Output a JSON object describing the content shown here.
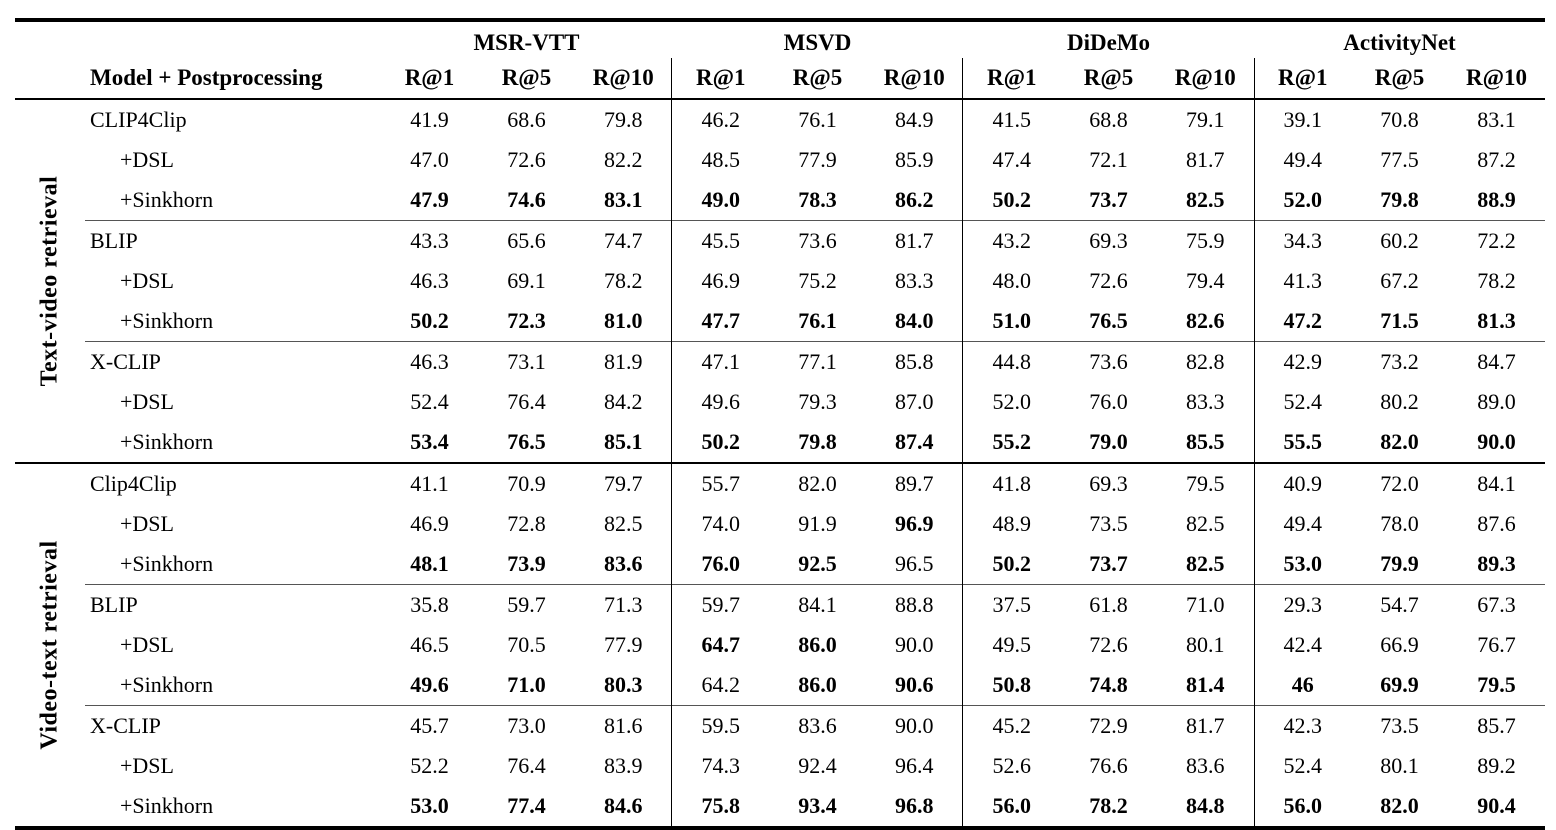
{
  "chart_data": {
    "type": "table",
    "row_header": "Model + Postprocessing",
    "col_groups": [
      {
        "label": "MSR-VTT"
      },
      {
        "label": "MSVD"
      },
      {
        "label": "DiDeMo"
      },
      {
        "label": "ActivityNet"
      }
    ],
    "metric_labels": [
      "R@1",
      "R@5",
      "R@10"
    ],
    "sections": [
      {
        "label": "Text-video retrieval",
        "groups": [
          {
            "rows": [
              {
                "model": "CLIP4Clip",
                "indent": false,
                "values": [
                  "41.9",
                  "68.6",
                  "79.8",
                  "46.2",
                  "76.1",
                  "84.9",
                  "41.5",
                  "68.8",
                  "79.1",
                  "39.1",
                  "70.8",
                  "83.1"
                ],
                "bold": []
              },
              {
                "model": "+DSL",
                "indent": true,
                "values": [
                  "47.0",
                  "72.6",
                  "82.2",
                  "48.5",
                  "77.9",
                  "85.9",
                  "47.4",
                  "72.1",
                  "81.7",
                  "49.4",
                  "77.5",
                  "87.2"
                ],
                "bold": []
              },
              {
                "model": "+Sinkhorn",
                "indent": true,
                "values": [
                  "47.9",
                  "74.6",
                  "83.1",
                  "49.0",
                  "78.3",
                  "86.2",
                  "50.2",
                  "73.7",
                  "82.5",
                  "52.0",
                  "79.8",
                  "88.9"
                ],
                "bold": [
                  0,
                  1,
                  2,
                  3,
                  4,
                  5,
                  6,
                  7,
                  8,
                  9,
                  10,
                  11
                ]
              }
            ]
          },
          {
            "rows": [
              {
                "model": "BLIP",
                "indent": false,
                "values": [
                  "43.3",
                  "65.6",
                  "74.7",
                  "45.5",
                  "73.6",
                  "81.7",
                  "43.2",
                  "69.3",
                  "75.9",
                  "34.3",
                  "60.2",
                  "72.2"
                ],
                "bold": []
              },
              {
                "model": "+DSL",
                "indent": true,
                "values": [
                  "46.3",
                  "69.1",
                  "78.2",
                  "46.9",
                  "75.2",
                  "83.3",
                  "48.0",
                  "72.6",
                  "79.4",
                  "41.3",
                  "67.2",
                  "78.2"
                ],
                "bold": []
              },
              {
                "model": "+Sinkhorn",
                "indent": true,
                "values": [
                  "50.2",
                  "72.3",
                  "81.0",
                  "47.7",
                  "76.1",
                  "84.0",
                  "51.0",
                  "76.5",
                  "82.6",
                  "47.2",
                  "71.5",
                  "81.3"
                ],
                "bold": [
                  0,
                  1,
                  2,
                  3,
                  4,
                  5,
                  6,
                  7,
                  8,
                  9,
                  10,
                  11
                ]
              }
            ]
          },
          {
            "rows": [
              {
                "model": "X-CLIP",
                "indent": false,
                "values": [
                  "46.3",
                  "73.1",
                  "81.9",
                  "47.1",
                  "77.1",
                  "85.8",
                  "44.8",
                  "73.6",
                  "82.8",
                  "42.9",
                  "73.2",
                  "84.7"
                ],
                "bold": []
              },
              {
                "model": "+DSL",
                "indent": true,
                "values": [
                  "52.4",
                  "76.4",
                  "84.2",
                  "49.6",
                  "79.3",
                  "87.0",
                  "52.0",
                  "76.0",
                  "83.3",
                  "52.4",
                  "80.2",
                  "89.0"
                ],
                "bold": []
              },
              {
                "model": "+Sinkhorn",
                "indent": true,
                "values": [
                  "53.4",
                  "76.5",
                  "85.1",
                  "50.2",
                  "79.8",
                  "87.4",
                  "55.2",
                  "79.0",
                  "85.5",
                  "55.5",
                  "82.0",
                  "90.0"
                ],
                "bold": [
                  0,
                  1,
                  2,
                  3,
                  4,
                  5,
                  6,
                  7,
                  8,
                  9,
                  10,
                  11
                ]
              }
            ]
          }
        ]
      },
      {
        "label": "Video-text retrieval",
        "groups": [
          {
            "rows": [
              {
                "model": "Clip4Clip",
                "indent": false,
                "values": [
                  "41.1",
                  "70.9",
                  "79.7",
                  "55.7",
                  "82.0",
                  "89.7",
                  "41.8",
                  "69.3",
                  "79.5",
                  "40.9",
                  "72.0",
                  "84.1"
                ],
                "bold": []
              },
              {
                "model": "+DSL",
                "indent": true,
                "values": [
                  "46.9",
                  "72.8",
                  "82.5",
                  "74.0",
                  "91.9",
                  "96.9",
                  "48.9",
                  "73.5",
                  "82.5",
                  "49.4",
                  "78.0",
                  "87.6"
                ],
                "bold": [
                  5
                ]
              },
              {
                "model": "+Sinkhorn",
                "indent": true,
                "values": [
                  "48.1",
                  "73.9",
                  "83.6",
                  "76.0",
                  "92.5",
                  "96.5",
                  "50.2",
                  "73.7",
                  "82.5",
                  "53.0",
                  "79.9",
                  "89.3"
                ],
                "bold": [
                  0,
                  1,
                  2,
                  3,
                  4,
                  6,
                  7,
                  8,
                  9,
                  10,
                  11
                ]
              }
            ]
          },
          {
            "rows": [
              {
                "model": "BLIP",
                "indent": false,
                "values": [
                  "35.8",
                  "59.7",
                  "71.3",
                  "59.7",
                  "84.1",
                  "88.8",
                  "37.5",
                  "61.8",
                  "71.0",
                  "29.3",
                  "54.7",
                  "67.3"
                ],
                "bold": []
              },
              {
                "model": "+DSL",
                "indent": true,
                "values": [
                  "46.5",
                  "70.5",
                  "77.9",
                  "64.7",
                  "86.0",
                  "90.0",
                  "49.5",
                  "72.6",
                  "80.1",
                  "42.4",
                  "66.9",
                  "76.7"
                ],
                "bold": [
                  3,
                  4
                ]
              },
              {
                "model": "+Sinkhorn",
                "indent": true,
                "values": [
                  "49.6",
                  "71.0",
                  "80.3",
                  "64.2",
                  "86.0",
                  "90.6",
                  "50.8",
                  "74.8",
                  "81.4",
                  "46",
                  "69.9",
                  "79.5"
                ],
                "bold": [
                  0,
                  1,
                  2,
                  4,
                  5,
                  6,
                  7,
                  8,
                  9,
                  10,
                  11
                ]
              }
            ]
          },
          {
            "rows": [
              {
                "model": "X-CLIP",
                "indent": false,
                "values": [
                  "45.7",
                  "73.0",
                  "81.6",
                  "59.5",
                  "83.6",
                  "90.0",
                  "45.2",
                  "72.9",
                  "81.7",
                  "42.3",
                  "73.5",
                  "85.7"
                ],
                "bold": []
              },
              {
                "model": "+DSL",
                "indent": true,
                "values": [
                  "52.2",
                  "76.4",
                  "83.9",
                  "74.3",
                  "92.4",
                  "96.4",
                  "52.6",
                  "76.6",
                  "83.6",
                  "52.4",
                  "80.1",
                  "89.2"
                ],
                "bold": []
              },
              {
                "model": "+Sinkhorn",
                "indent": true,
                "values": [
                  "53.0",
                  "77.4",
                  "84.6",
                  "75.8",
                  "93.4",
                  "96.8",
                  "56.0",
                  "78.2",
                  "84.8",
                  "56.0",
                  "82.0",
                  "90.4"
                ],
                "bold": [
                  0,
                  1,
                  2,
                  3,
                  4,
                  5,
                  6,
                  7,
                  8,
                  9,
                  10,
                  11
                ]
              }
            ]
          }
        ]
      }
    ]
  },
  "colors": {
    "text": "#000000",
    "background": "#ffffff",
    "rule": "#000000"
  }
}
